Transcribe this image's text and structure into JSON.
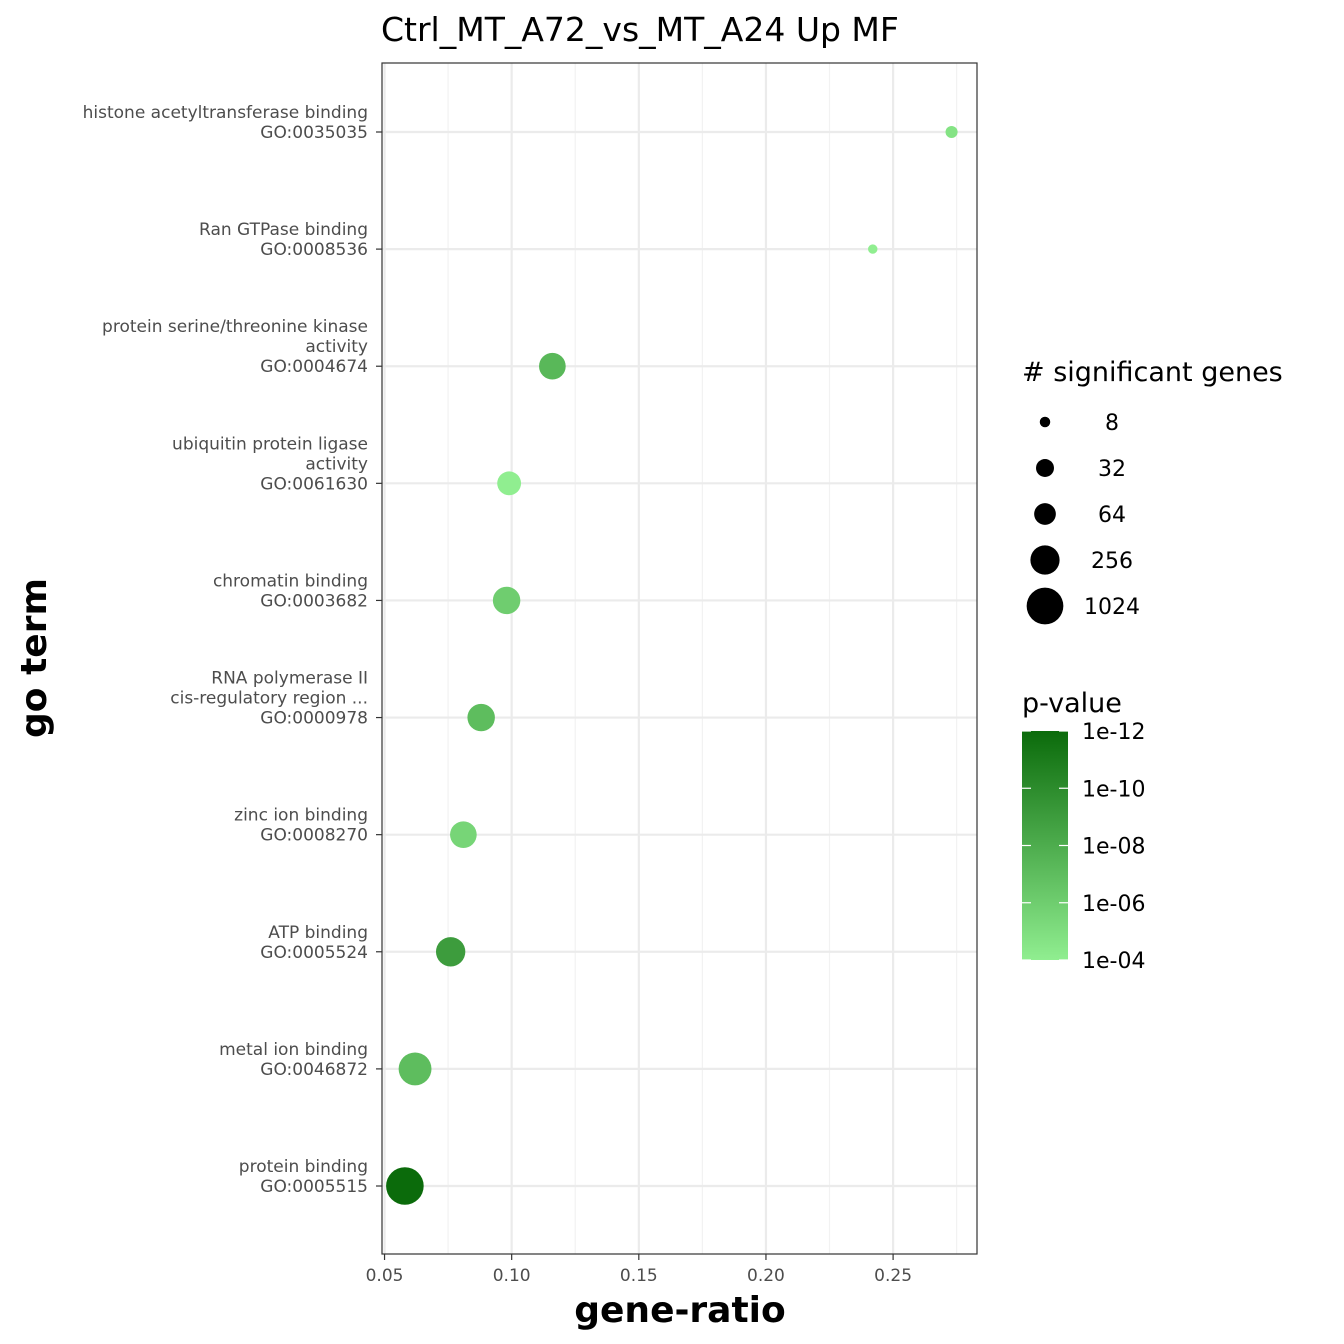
{
  "chart_data": {
    "type": "scatter",
    "title": "Ctrl_MT_A72_vs_MT_A24 Up MF",
    "xlabel": "gene-ratio",
    "ylabel": "go term",
    "xlim": [
      0.049,
      0.283
    ],
    "x_ticks": [
      "0.05",
      "0.10",
      "0.15",
      "0.20",
      "0.25"
    ],
    "x_tick_values": [
      0.05,
      0.1,
      0.15,
      0.2,
      0.25
    ],
    "grid": true,
    "points": [
      {
        "term": [
          "histone acetyltransferase binding",
          "GO:0035035"
        ],
        "x": 0.273,
        "genes": 10,
        "pvalue": 2e-05
      },
      {
        "term": [
          "Ran GTPase binding",
          "GO:0008536"
        ],
        "x": 0.242,
        "genes": 7,
        "pvalue": 0.0001
      },
      {
        "term": [
          "protein serine/threonine kinase",
          "activity",
          "GO:0004674"
        ],
        "x": 0.116,
        "genes": 70,
        "pvalue": 5e-08
      },
      {
        "term": [
          "ubiquitin protein ligase",
          "activity",
          "GO:0061630"
        ],
        "x": 0.099,
        "genes": 48,
        "pvalue": 0.0001
      },
      {
        "term": [
          "chromatin binding",
          "GO:0003682"
        ],
        "x": 0.098,
        "genes": 78,
        "pvalue": 1e-06
      },
      {
        "term": [
          "RNA polymerase II",
          "cis-regulatory region ...",
          "GO:0000978"
        ],
        "x": 0.088,
        "genes": 78,
        "pvalue": 1e-07
      },
      {
        "term": [
          "zinc ion binding",
          "GO:0008270"
        ],
        "x": 0.081,
        "genes": 70,
        "pvalue": 3e-06
      },
      {
        "term": [
          "ATP binding",
          "GO:0005524"
        ],
        "x": 0.076,
        "genes": 100,
        "pvalue": 1e-09
      },
      {
        "term": [
          "metal ion binding",
          "GO:0046872"
        ],
        "x": 0.062,
        "genes": 160,
        "pvalue": 1e-07
      },
      {
        "term": [
          "protein binding",
          "GO:0005515"
        ],
        "x": 0.058,
        "genes": 300,
        "pvalue": 1e-12
      }
    ],
    "size_legend": {
      "title": "# significant  genes",
      "labels": [
        "8",
        "32",
        "64",
        "256",
        "1024"
      ],
      "values": [
        8,
        32,
        64,
        256,
        1024
      ]
    },
    "color_legend": {
      "title": "p-value",
      "labels": [
        "1e-12",
        "1e-10",
        "1e-08",
        "1e-06",
        "1e-04"
      ],
      "log10_range": [
        -12,
        -4
      ],
      "low_color": "#0b6b0b",
      "high_color": "#90ee90"
    }
  }
}
